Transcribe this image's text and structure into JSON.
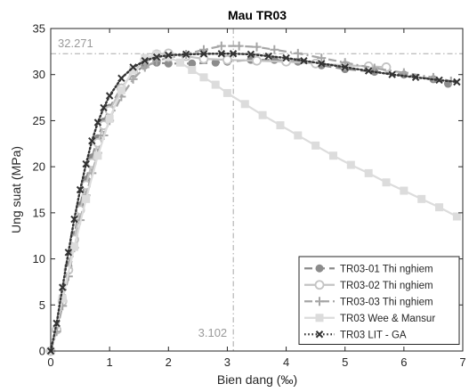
{
  "chart_data": {
    "type": "line",
    "title": "Mau TR03",
    "xlabel": "Bien dang (‰)",
    "ylabel": "Ung suat (MPa)",
    "xlim": [
      0,
      7
    ],
    "ylim": [
      0,
      35
    ],
    "xticks": [
      "0",
      "1",
      "2",
      "3",
      "4",
      "5",
      "6",
      "7"
    ],
    "yticks": [
      "0",
      "5",
      "10",
      "15",
      "20",
      "25",
      "30",
      "35"
    ],
    "grid": false,
    "legend_position": "bottom-right",
    "annotations": {
      "peak_stress": {
        "text": "32.271",
        "value": 32.271
      },
      "peak_strain": {
        "text": "3.102",
        "value": 3.102
      }
    },
    "series": [
      {
        "name": "TR03-01 Thi nghiem",
        "color": "#8c8c8c",
        "line": "dashed",
        "marker": "circle",
        "points": [
          [
            0,
            0
          ],
          [
            0.1,
            2.5
          ],
          [
            0.2,
            5.8
          ],
          [
            0.3,
            9.2
          ],
          [
            0.4,
            12.6
          ],
          [
            0.5,
            15.8
          ],
          [
            0.6,
            18.6
          ],
          [
            0.7,
            21
          ],
          [
            0.8,
            23.1
          ],
          [
            0.9,
            24.9
          ],
          [
            1,
            26.4
          ],
          [
            1.2,
            28.6
          ],
          [
            1.4,
            30.1
          ],
          [
            1.6,
            31
          ],
          [
            1.8,
            31.3
          ],
          [
            2,
            31.2
          ],
          [
            2.4,
            31.2
          ],
          [
            2.8,
            31.3
          ],
          [
            3,
            31.4
          ],
          [
            3.4,
            31.6
          ],
          [
            3.8,
            31.6
          ],
          [
            4.2,
            31.4
          ],
          [
            4.6,
            31
          ],
          [
            5,
            30.6
          ],
          [
            5.5,
            30.3
          ],
          [
            6,
            30
          ],
          [
            6.5,
            29.5
          ],
          [
            6.75,
            29
          ]
        ]
      },
      {
        "name": "TR03-02 Thi nghiem",
        "color": "#c4c4c4",
        "line": "solid",
        "marker": "open-circle",
        "points": [
          [
            0,
            0
          ],
          [
            0.1,
            2.3
          ],
          [
            0.2,
            5.4
          ],
          [
            0.3,
            8.8
          ],
          [
            0.4,
            12.1
          ],
          [
            0.5,
            15.3
          ],
          [
            0.6,
            18
          ],
          [
            0.7,
            20.4
          ],
          [
            0.8,
            22.6
          ],
          [
            0.9,
            24.5
          ],
          [
            1,
            26.1
          ],
          [
            1.2,
            28.5
          ],
          [
            1.4,
            30.3
          ],
          [
            1.6,
            31.6
          ],
          [
            1.8,
            32.2
          ],
          [
            2,
            32.3
          ],
          [
            2.3,
            32
          ],
          [
            2.6,
            31.7
          ],
          [
            3,
            31.6
          ],
          [
            3.5,
            31.5
          ],
          [
            4,
            31.4
          ],
          [
            4.5,
            31.2
          ],
          [
            5,
            31
          ],
          [
            5.4,
            30.9
          ],
          [
            5.7,
            30.8
          ]
        ]
      },
      {
        "name": "TR03-03 Thi nghiem",
        "color": "#a6a6a6",
        "line": "dashdot",
        "marker": "plus",
        "points": [
          [
            0,
            0
          ],
          [
            0.1,
            2.1
          ],
          [
            0.2,
            4.9
          ],
          [
            0.3,
            8.1
          ],
          [
            0.4,
            11.2
          ],
          [
            0.5,
            14.2
          ],
          [
            0.6,
            16.9
          ],
          [
            0.7,
            19.3
          ],
          [
            0.8,
            21.5
          ],
          [
            0.9,
            23.4
          ],
          [
            1,
            25
          ],
          [
            1.2,
            27.6
          ],
          [
            1.4,
            29.5
          ],
          [
            1.6,
            30.8
          ],
          [
            1.8,
            31.5
          ],
          [
            2,
            31.8
          ],
          [
            2.3,
            32.2
          ],
          [
            2.6,
            32.7
          ],
          [
            2.9,
            33.1
          ],
          [
            3.2,
            33.1
          ],
          [
            3.5,
            33
          ],
          [
            3.8,
            32.7
          ],
          [
            4.2,
            32.3
          ],
          [
            4.6,
            31.8
          ],
          [
            5,
            31.3
          ],
          [
            5.5,
            30.7
          ],
          [
            6,
            30.2
          ],
          [
            6.5,
            29.7
          ],
          [
            6.8,
            29.3
          ]
        ]
      },
      {
        "name": "TR03 Wee & Mansur",
        "color": "#dcdcdc",
        "line": "solid",
        "marker": "square",
        "points": [
          [
            0,
            0
          ],
          [
            0.2,
            5.7
          ],
          [
            0.4,
            11.3
          ],
          [
            0.6,
            16.5
          ],
          [
            0.8,
            21.2
          ],
          [
            1,
            25.2
          ],
          [
            1.2,
            28.3
          ],
          [
            1.4,
            30.5
          ],
          [
            1.6,
            31.8
          ],
          [
            1.8,
            32.2
          ],
          [
            2,
            31.9
          ],
          [
            2.2,
            31.3
          ],
          [
            2.4,
            30.5
          ],
          [
            2.6,
            29.7
          ],
          [
            2.8,
            28.9
          ],
          [
            3,
            28
          ],
          [
            3.3,
            26.8
          ],
          [
            3.6,
            25.6
          ],
          [
            3.9,
            24.5
          ],
          [
            4.2,
            23.4
          ],
          [
            4.5,
            22.3
          ],
          [
            4.8,
            21.2
          ],
          [
            5.1,
            20.2
          ],
          [
            5.4,
            19.3
          ],
          [
            5.7,
            18.3
          ],
          [
            6,
            17.4
          ],
          [
            6.3,
            16.5
          ],
          [
            6.6,
            15.6
          ],
          [
            6.9,
            14.6
          ]
        ]
      },
      {
        "name": "TR03 LIT - GA",
        "color": "#333333",
        "line": "dotted",
        "marker": "x",
        "points": [
          [
            0,
            0
          ],
          [
            0.1,
            3
          ],
          [
            0.2,
            6.9
          ],
          [
            0.3,
            10.7
          ],
          [
            0.4,
            14.3
          ],
          [
            0.5,
            17.5
          ],
          [
            0.6,
            20.3
          ],
          [
            0.7,
            22.8
          ],
          [
            0.8,
            24.8
          ],
          [
            0.9,
            26.4
          ],
          [
            1,
            27.7
          ],
          [
            1.2,
            29.6
          ],
          [
            1.4,
            30.8
          ],
          [
            1.6,
            31.5
          ],
          [
            1.8,
            31.9
          ],
          [
            2,
            32.1
          ],
          [
            2.3,
            32.2
          ],
          [
            2.6,
            32.25
          ],
          [
            2.9,
            32.27
          ],
          [
            3.1,
            32.27
          ],
          [
            3.4,
            32.2
          ],
          [
            3.7,
            32
          ],
          [
            4,
            31.8
          ],
          [
            4.3,
            31.5
          ],
          [
            4.6,
            31.2
          ],
          [
            5,
            30.8
          ],
          [
            5.4,
            30.4
          ],
          [
            5.8,
            30
          ],
          [
            6.2,
            29.7
          ],
          [
            6.6,
            29.4
          ],
          [
            6.9,
            29.2
          ]
        ]
      }
    ]
  }
}
